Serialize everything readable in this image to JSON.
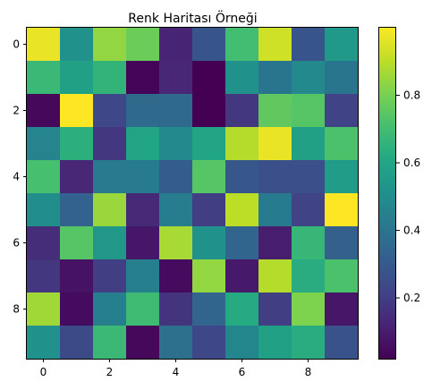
{
  "chart_data": {
    "type": "heatmap",
    "title": "Renk Haritası Örneği",
    "xlabel": "",
    "ylabel": "",
    "colormap": "viridis",
    "rows": 10,
    "cols": 10,
    "x_ticks": [
      "0",
      "2",
      "4",
      "6",
      "8"
    ],
    "y_ticks": [
      "0",
      "2",
      "4",
      "6",
      "8"
    ],
    "colorbar": {
      "vmin": 0.02,
      "vmax": 1.0,
      "tick_values": [
        0.2,
        0.4,
        0.6,
        0.8
      ],
      "tick_labels": [
        "0.2",
        "0.4",
        "0.6",
        "0.8"
      ]
    },
    "values": [
      [
        0.97,
        0.52,
        0.84,
        0.78,
        0.12,
        0.28,
        0.7,
        0.93,
        0.28,
        0.55
      ],
      [
        0.68,
        0.58,
        0.66,
        0.03,
        0.13,
        0.02,
        0.52,
        0.4,
        0.48,
        0.4
      ],
      [
        0.04,
        1.0,
        0.23,
        0.36,
        0.36,
        0.02,
        0.18,
        0.76,
        0.74,
        0.22
      ],
      [
        0.46,
        0.64,
        0.18,
        0.6,
        0.48,
        0.6,
        0.89,
        0.97,
        0.58,
        0.72
      ],
      [
        0.71,
        0.13,
        0.42,
        0.42,
        0.31,
        0.74,
        0.29,
        0.26,
        0.26,
        0.56
      ],
      [
        0.5,
        0.33,
        0.85,
        0.14,
        0.43,
        0.2,
        0.9,
        0.42,
        0.22,
        1.0
      ],
      [
        0.15,
        0.74,
        0.54,
        0.08,
        0.87,
        0.52,
        0.34,
        0.1,
        0.67,
        0.32
      ],
      [
        0.18,
        0.07,
        0.2,
        0.44,
        0.05,
        0.84,
        0.09,
        0.89,
        0.63,
        0.72
      ],
      [
        0.86,
        0.05,
        0.44,
        0.69,
        0.17,
        0.34,
        0.62,
        0.2,
        0.81,
        0.08
      ],
      [
        0.52,
        0.24,
        0.68,
        0.04,
        0.38,
        0.23,
        0.47,
        0.58,
        0.63,
        0.27
      ]
    ]
  }
}
